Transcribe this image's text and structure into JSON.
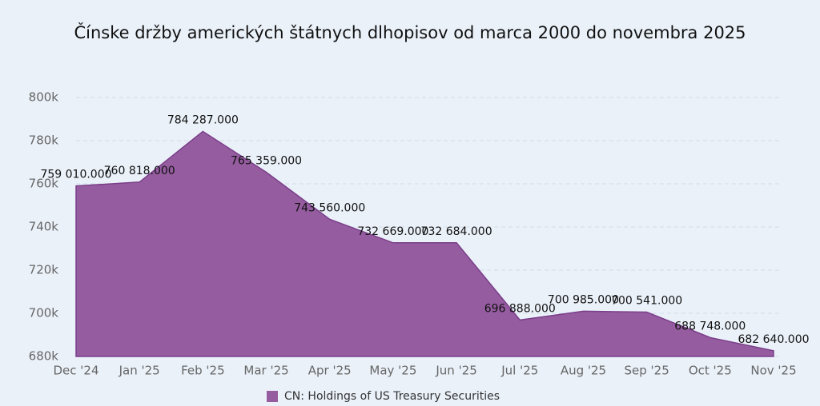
{
  "chart_data": {
    "type": "area",
    "title": "Čínske držby amerických štátnych dlhopisov od marca 2000 do novembra 2025",
    "categories": [
      "Dec '24",
      "Jan '25",
      "Feb '25",
      "Mar '25",
      "Apr '25",
      "May '25",
      "Jun '25",
      "Jul '25",
      "Aug '25",
      "Sep '25",
      "Oct '25",
      "Nov '25"
    ],
    "series": [
      {
        "name": "CN: Holdings of US Treasury Securities",
        "color": "#955ca0",
        "values": [
          759010,
          760818,
          784287,
          765359,
          743560,
          732669,
          732684,
          696888,
          700985,
          700541,
          688748,
          682640
        ],
        "value_labels": [
          "759 010.000",
          "760 818.000",
          "784 287.000",
          "765 359.000",
          "743 560.000",
          "732 669.000",
          "732 684.000",
          "696 888.000",
          "700 985.000",
          "700 541.000",
          "688 748.000",
          "682 640.000"
        ]
      }
    ],
    "ylim": [
      680000,
      800000
    ],
    "yticks": [
      {
        "value": 680000,
        "label": "680k"
      },
      {
        "value": 700000,
        "label": "700k"
      },
      {
        "value": 720000,
        "label": "720k"
      },
      {
        "value": 740000,
        "label": "740k"
      },
      {
        "value": 760000,
        "label": "760k"
      },
      {
        "value": 780000,
        "label": "780k"
      },
      {
        "value": 800000,
        "label": "800k"
      }
    ],
    "grid": true,
    "legend": "bottom"
  }
}
